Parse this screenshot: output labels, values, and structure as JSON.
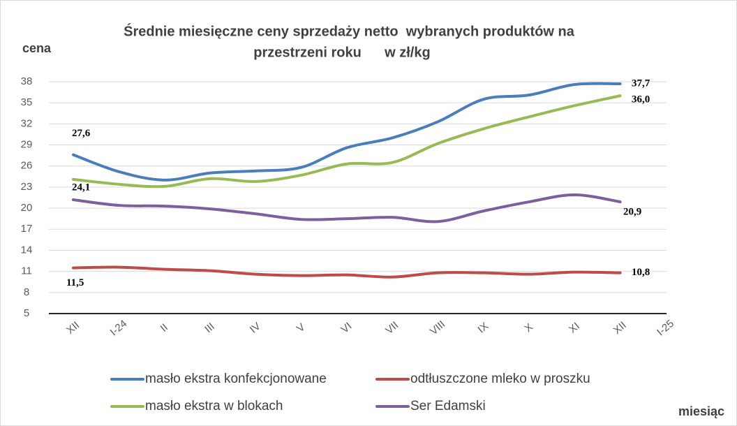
{
  "chart_data": {
    "type": "line",
    "title": [
      "Średnie miesięczne ceny sprzedaży netto  wybranych produktów na",
      "przestrzeni roku      w zł/kg"
    ],
    "y_label": "cena",
    "x_label": "miesiąc",
    "categories": [
      "XII",
      "I-24",
      "II",
      "III",
      "IV",
      "V",
      "VI",
      "VII",
      "VIII",
      "IX",
      "X",
      "XI",
      "XII",
      "I-25"
    ],
    "ylim": [
      5,
      38
    ],
    "yticks": [
      5,
      8,
      11,
      14,
      17,
      20,
      23,
      26,
      29,
      32,
      35,
      38
    ],
    "grid": true,
    "series": [
      {
        "name": "masło ekstra konfekcjonowane",
        "color": "#4a7ebb",
        "values": [
          27.6,
          25.2,
          24.0,
          25.0,
          25.3,
          25.8,
          28.6,
          30.0,
          32.3,
          35.5,
          36.1,
          37.6,
          37.7,
          null
        ],
        "value_labels": [
          "27,6",
          null,
          null,
          null,
          null,
          null,
          null,
          null,
          null,
          null,
          null,
          null,
          "37,7",
          null
        ]
      },
      {
        "name": "odtłuszczone mleko w proszku",
        "color": "#be4b48",
        "values": [
          11.5,
          11.6,
          11.3,
          11.1,
          10.6,
          10.4,
          10.5,
          10.2,
          10.8,
          10.8,
          10.6,
          10.9,
          10.8,
          null
        ],
        "value_labels": [
          "11,5",
          null,
          null,
          null,
          null,
          null,
          null,
          null,
          null,
          null,
          null,
          null,
          "10,8",
          null
        ]
      },
      {
        "name": "masło ekstra w blokach",
        "color": "#98b954",
        "values": [
          24.1,
          23.4,
          23.1,
          24.2,
          23.8,
          24.7,
          26.3,
          26.5,
          29.2,
          31.3,
          33.0,
          34.6,
          36.0,
          null
        ],
        "value_labels": [
          "24,1",
          null,
          null,
          null,
          null,
          null,
          null,
          null,
          null,
          null,
          null,
          null,
          "36,0",
          null
        ]
      },
      {
        "name": "Ser Edamski",
        "color": "#7d5fa0",
        "values": [
          21.2,
          20.4,
          20.3,
          19.9,
          19.2,
          18.4,
          18.5,
          18.7,
          18.1,
          19.6,
          20.9,
          21.9,
          20.9,
          null
        ],
        "value_labels": [
          null,
          null,
          null,
          null,
          null,
          null,
          null,
          null,
          null,
          null,
          null,
          null,
          "20,9",
          null
        ]
      }
    ]
  }
}
